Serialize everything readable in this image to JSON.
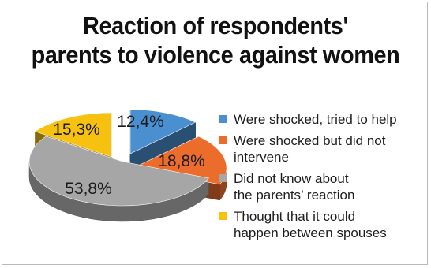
{
  "title_lines": [
    "Reaction of respondents'",
    "parents to violence against women"
  ],
  "chart_data": {
    "type": "pie",
    "style": "3d-exploded",
    "slices": [
      {
        "label": "Were shocked, tried to help",
        "value": 12.4,
        "display": "12,4%",
        "color": "#4a8fd0"
      },
      {
        "label": "Were shocked but did not intervene",
        "value": 18.8,
        "display": "18,8%",
        "color": "#ec6c2c"
      },
      {
        "label": "Did not know about the parents' reaction",
        "value": 53.8,
        "display": "53,8%",
        "color": "#a6a6a6"
      },
      {
        "label": "Thought that it could happen between spouses",
        "value": 15.3,
        "display": "15,3%",
        "color": "#f6c20f"
      }
    ],
    "legend": {
      "position": "right",
      "entries": [
        "Were shocked, tried to help",
        "Were shocked but did not\nintervene",
        "Did not know about\nthe parents’ reaction",
        "Thought that it could\nhappen between spouses"
      ]
    }
  }
}
